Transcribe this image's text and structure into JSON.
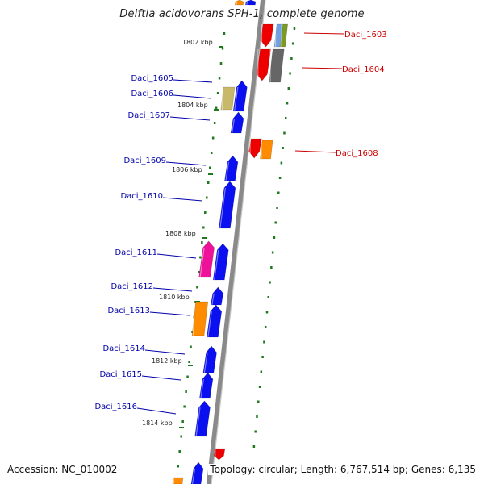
{
  "title": "Delftia acidovorans SPH-1, complete genome",
  "footer": {
    "accession": "Accession: NC_010002",
    "summary": "Topology: circular; Length: 6,767,514 bp; Genes: 6,135"
  },
  "colors": {
    "backbone": "#8a8a8a",
    "tick": "#1f7a1f",
    "label_left": "#0000aa",
    "label_right": "#cc0000",
    "gene_blue": "#0a10f0",
    "gene_red": "#ee0000",
    "gene_orange": "#ff8c00",
    "gene_khaki": "#c8b86a",
    "gene_magenta": "#ee1199",
    "gene_gray": "#666666",
    "gene_green": "#7a9a20",
    "gene_lightblue": "#70a0e0"
  },
  "scale_ticks": [
    "1802 kbp",
    "1804 kbp",
    "1806 kbp",
    "1808 kbp",
    "1810 kbp",
    "1812 kbp",
    "1814 kbp"
  ],
  "gene_labels": {
    "left": [
      "Daci_1605",
      "Daci_1606",
      "Daci_1607",
      "Daci_1609",
      "Daci_1610",
      "Daci_1611",
      "Daci_1612",
      "Daci_1613",
      "Daci_1614",
      "Daci_1615",
      "Daci_1616"
    ],
    "right": [
      "Daci_1603",
      "Daci_1604",
      "Daci_1608"
    ]
  }
}
